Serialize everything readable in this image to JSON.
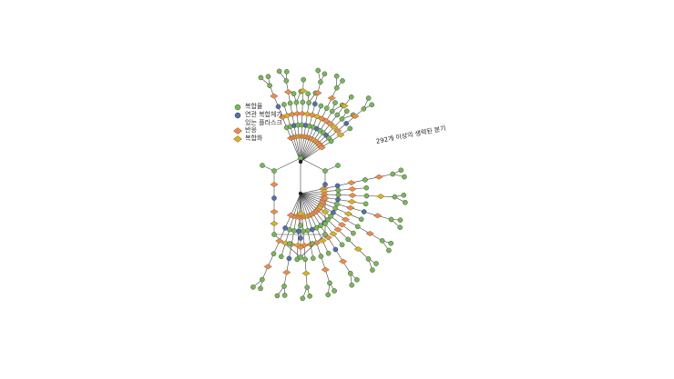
{
  "legend": {
    "items": [
      {
        "label": "복합물",
        "kind": "circle",
        "color": "#78b851"
      },
      {
        "label": "연관 복합체가\n있는 플라스크",
        "kind": "circle",
        "color": "#5470a8"
      },
      {
        "label": "반응",
        "kind": "diamond",
        "color": "#f08a4b"
      },
      {
        "label": "복합화",
        "kind": "diamond",
        "color": "#d6b31f"
      }
    ]
  },
  "annotation": "292개 이상의 생략된 분기",
  "colors": {
    "compound": "#78b851",
    "flask": "#5470a8",
    "reaction": "#f08a4b",
    "complexation": "#d6b31f",
    "edge": "#444444"
  }
}
